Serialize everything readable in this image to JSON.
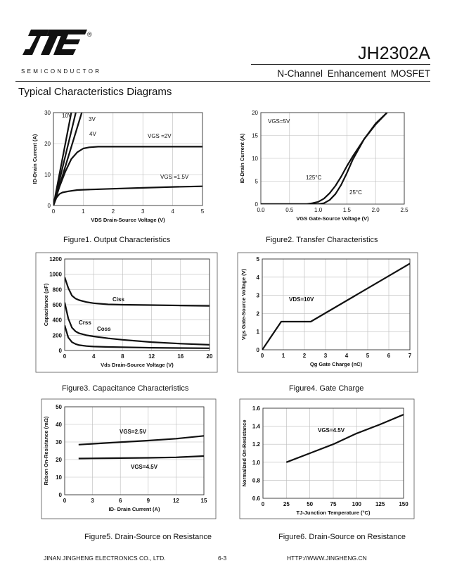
{
  "header": {
    "semiconductor": "SEMICONDUCTOR",
    "registered": "®",
    "part_number": "JH2302A",
    "subtitle": "N-Channel Enhancement MOSFET",
    "section_title": "Typical Characteristics Diagrams"
  },
  "footer": {
    "company": "JINAN JINGHENG ELECTRONICS CO., LTD.",
    "page": "6-3",
    "url": "HTTP://WWW.JINGHENG.CN"
  },
  "captions": [
    "Figure1.  Output Characteristics",
    "Figure2.  Transfer Characteristics",
    "Figure3.  Capacitance Characteristics",
    "Figure4.  Gate Charge",
    "Figure5. Drain-Source on Resistance",
    "Figure6. Drain-Source on Resistance"
  ],
  "chart_data": [
    {
      "type": "line",
      "xlabel": "V_DS Drain-Source Voltage (V)",
      "ylabel": "I_D-Drain Current (A)",
      "xlim": [
        0,
        5
      ],
      "ylim": [
        0,
        30
      ],
      "xticks": [
        "0",
        "1",
        "2",
        "3",
        "4",
        "5"
      ],
      "yticks": [
        "0",
        "10",
        "20",
        "30"
      ],
      "grid": true,
      "series": [
        {
          "name": "10V",
          "x": [
            0,
            0.6
          ],
          "y": [
            0,
            30
          ]
        },
        {
          "name": "3V",
          "x": [
            0,
            0.75
          ],
          "y": [
            0,
            30
          ]
        },
        {
          "name": "4V",
          "x": [
            0,
            0.95
          ],
          "y": [
            0,
            30
          ]
        },
        {
          "name": "VGS =2V",
          "x": [
            0,
            0.2,
            0.4,
            0.6,
            0.8,
            1.0,
            1.2,
            1.5,
            2,
            3,
            4,
            5
          ],
          "y": [
            0,
            6,
            11,
            15,
            17.2,
            18.4,
            18.8,
            19,
            19,
            19,
            19,
            19
          ]
        },
        {
          "name": "VGS =1.5V",
          "x": [
            0,
            0.1,
            0.2,
            0.3,
            0.5,
            0.8,
            1,
            2,
            3,
            4,
            5
          ],
          "y": [
            0,
            2.5,
            3.7,
            4.2,
            4.6,
            5.0,
            5.1,
            5.4,
            5.7,
            6.0,
            6.2
          ]
        }
      ],
      "annotations": [
        "10V",
        "3V",
        "4V",
        "VGS =2V",
        "VGS =1.5V"
      ]
    },
    {
      "type": "line",
      "xlabel": "V_GS Gate-Source Voltage (V)",
      "ylabel": "I_D-Drain Current (A)",
      "xlim": [
        0,
        2.5
      ],
      "ylim": [
        0,
        20
      ],
      "xticks": [
        "0.0",
        "0.5",
        "1.0",
        "1.5",
        "2.0",
        "2.5"
      ],
      "yticks": [
        "0",
        "5",
        "10",
        "15",
        "20"
      ],
      "grid": true,
      "series": [
        {
          "name": "125°C",
          "x": [
            0,
            0.8,
            0.9,
            1.0,
            1.1,
            1.2,
            1.3,
            1.4,
            1.5,
            1.6,
            1.8,
            2.0,
            2.2
          ],
          "y": [
            0,
            0,
            0.2,
            0.5,
            1.2,
            2.4,
            4,
            6,
            8.3,
            10.4,
            14.2,
            17.6,
            20
          ]
        },
        {
          "name": "25°C",
          "x": [
            0,
            1.0,
            1.1,
            1.2,
            1.3,
            1.4,
            1.5,
            1.6,
            1.8,
            2.0,
            2.2
          ],
          "y": [
            0,
            0,
            0.2,
            0.9,
            2.2,
            4.2,
            6.8,
            9.7,
            14.2,
            17.4,
            20
          ]
        }
      ],
      "annotations": [
        "VGS=5V",
        "125°C",
        "25°C"
      ]
    },
    {
      "type": "line",
      "xlabel": "Vds Drain-Source Voltage (V)",
      "ylabel": "Capacitance (pF)",
      "xlim": [
        0,
        20
      ],
      "ylim": [
        0,
        1200
      ],
      "xticks": [
        "0",
        "4",
        "8",
        "12",
        "16",
        "20"
      ],
      "yticks": [
        "0",
        "200",
        "400",
        "600",
        "800",
        "1000",
        "1200"
      ],
      "grid": true,
      "series": [
        {
          "name": "Ciss",
          "x": [
            0,
            0.5,
            1,
            1.5,
            2,
            3,
            4,
            6,
            8,
            12,
            16,
            20
          ],
          "y": [
            960,
            820,
            720,
            680,
            660,
            635,
            620,
            605,
            600,
            595,
            590,
            585
          ]
        },
        {
          "name": "Coss",
          "x": [
            0,
            0.5,
            1,
            1.5,
            2,
            3,
            4,
            6,
            8,
            12,
            16,
            20
          ],
          "y": [
            630,
            420,
            300,
            250,
            225,
            200,
            185,
            160,
            140,
            110,
            90,
            75
          ]
        },
        {
          "name": "Crss",
          "x": [
            0,
            0.5,
            1,
            1.5,
            2,
            3,
            4,
            6,
            8,
            12,
            16,
            20
          ],
          "y": [
            330,
            170,
            110,
            85,
            70,
            58,
            52,
            46,
            42,
            36,
            32,
            30
          ]
        }
      ],
      "annotations": [
        "Ciss",
        "Crss",
        "Coss"
      ]
    },
    {
      "type": "line",
      "xlabel": "Qg Gate Charge (nC)",
      "ylabel": "Vgs Gate-Source Voltage (V)",
      "xlim": [
        0,
        7
      ],
      "ylim": [
        0,
        5
      ],
      "xticks": [
        "0",
        "1",
        "2",
        "3",
        "4",
        "5",
        "6",
        "7"
      ],
      "yticks": [
        "0",
        "1",
        "2",
        "3",
        "4",
        "5"
      ],
      "grid": true,
      "series": [
        {
          "name": "VDS=10V",
          "x": [
            0,
            0.9,
            2.3,
            7
          ],
          "y": [
            0,
            1.55,
            1.55,
            4.75
          ]
        }
      ],
      "annotations": [
        "VDS=10V"
      ]
    },
    {
      "type": "line",
      "xlabel": "I_D- Drain Current (A)",
      "ylabel": "Rdson On-Resistance (mΩ)",
      "xlim": [
        0,
        15
      ],
      "ylim": [
        0,
        50
      ],
      "xticks": [
        "0",
        "3",
        "6",
        "9",
        "12",
        "15"
      ],
      "yticks": [
        "0",
        "10",
        "20",
        "30",
        "40",
        "50"
      ],
      "grid": true,
      "series": [
        {
          "name": "VGS=2.5V",
          "x": [
            1.5,
            5,
            9,
            12,
            15
          ],
          "y": [
            28.5,
            29.6,
            30.8,
            31.9,
            33.5
          ]
        },
        {
          "name": "VGS=4.5V",
          "x": [
            1.5,
            5,
            9,
            12,
            15
          ],
          "y": [
            20.6,
            20.8,
            21.0,
            21.3,
            22.0
          ]
        }
      ],
      "annotations": [
        "VGS=2.5V",
        "VGS=4.5V"
      ]
    },
    {
      "type": "line",
      "xlabel": "T_J-Junction Temperature (°C)",
      "ylabel": "Normalized On-Resistance",
      "xlim": [
        0,
        150
      ],
      "ylim": [
        0.6,
        1.6
      ],
      "xticks": [
        "0",
        "25",
        "50",
        "75",
        "100",
        "125",
        "150"
      ],
      "yticks": [
        "0.6",
        "0.8",
        "1.0",
        "1.2",
        "1.4",
        "1.6"
      ],
      "grid": true,
      "series": [
        {
          "name": "VGS=4.5V",
          "x": [
            25,
            50,
            75,
            100,
            125,
            150
          ],
          "y": [
            1.0,
            1.1,
            1.2,
            1.32,
            1.42,
            1.53
          ]
        }
      ],
      "annotations": [
        "VGS=4.5V"
      ]
    }
  ]
}
